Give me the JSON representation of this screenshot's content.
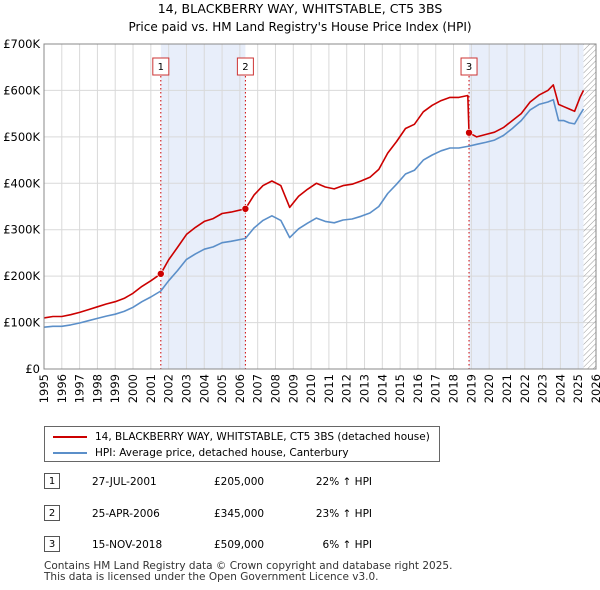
{
  "chart_data": {
    "type": "line",
    "title": "14, BLACKBERRY WAY, WHITSTABLE, CT5 3BS",
    "subtitle": "Price paid vs. HM Land Registry's House Price Index (HPI)",
    "xlabel": "",
    "ylabel": "",
    "xlim": [
      1995,
      2026
    ],
    "ylim": [
      0,
      700000
    ],
    "x_ticks": [
      "1995",
      "1996",
      "1997",
      "1998",
      "1999",
      "2000",
      "2001",
      "2002",
      "2003",
      "2004",
      "2005",
      "2006",
      "2007",
      "2008",
      "2009",
      "2010",
      "2011",
      "2012",
      "2013",
      "2014",
      "2015",
      "2016",
      "2017",
      "2018",
      "2019",
      "2020",
      "2021",
      "2022",
      "2023",
      "2024",
      "2025",
      "2026"
    ],
    "y_ticks": [
      {
        "value": 0,
        "label": "£0"
      },
      {
        "value": 100000,
        "label": "£100K"
      },
      {
        "value": 200000,
        "label": "£200K"
      },
      {
        "value": 300000,
        "label": "£300K"
      },
      {
        "value": 400000,
        "label": "£400K"
      },
      {
        "value": 500000,
        "label": "£500K"
      },
      {
        "value": 600000,
        "label": "£600K"
      },
      {
        "value": 700000,
        "label": "£700K"
      }
    ],
    "grid": true,
    "shaded_periods": [
      [
        2001.56,
        2006.31
      ],
      [
        2018.87,
        2025.3
      ]
    ],
    "future_hatch_from": 2025.3,
    "series": [
      {
        "name": "14, BLACKBERRY WAY, WHITSTABLE, CT5 3BS (detached house)",
        "color": "#cc0000",
        "x": [
          1995.0,
          1995.5,
          1996.0,
          1996.5,
          1997.0,
          1997.5,
          1998.0,
          1998.5,
          1999.0,
          1999.5,
          2000.0,
          2000.5,
          2001.0,
          2001.56,
          2002.0,
          2002.5,
          2003.0,
          2003.5,
          2004.0,
          2004.5,
          2005.0,
          2005.5,
          2006.31,
          2006.8,
          2007.3,
          2007.8,
          2008.3,
          2008.8,
          2009.3,
          2009.8,
          2010.3,
          2010.8,
          2011.3,
          2011.8,
          2012.3,
          2012.8,
          2013.3,
          2013.8,
          2014.3,
          2014.8,
          2015.3,
          2015.8,
          2016.3,
          2016.8,
          2017.3,
          2017.8,
          2018.3,
          2018.8,
          2018.87,
          2019.3,
          2019.8,
          2020.3,
          2020.8,
          2021.3,
          2021.8,
          2022.3,
          2022.8,
          2023.3,
          2023.6,
          2023.9,
          2024.2,
          2024.5,
          2024.8,
          2025.1,
          2025.3
        ],
        "y": [
          110000,
          113000,
          113000,
          117000,
          122000,
          128000,
          134000,
          140000,
          145000,
          152000,
          163000,
          178000,
          190000,
          205000,
          235000,
          262000,
          290000,
          305000,
          318000,
          324000,
          335000,
          338000,
          345000,
          375000,
          395000,
          405000,
          395000,
          348000,
          372000,
          387000,
          400000,
          392000,
          388000,
          395000,
          398000,
          405000,
          413000,
          430000,
          465000,
          490000,
          518000,
          527000,
          554000,
          568000,
          578000,
          585000,
          585000,
          589000,
          509000,
          500000,
          505000,
          510000,
          520000,
          535000,
          550000,
          575000,
          590000,
          600000,
          612000,
          570000,
          565000,
          560000,
          555000,
          585000,
          600000
        ]
      },
      {
        "name": "HPI: Average price, detached house, Canterbury",
        "color": "#5b8fc9",
        "x": [
          1995.0,
          1995.5,
          1996.0,
          1996.5,
          1997.0,
          1997.5,
          1998.0,
          1998.5,
          1999.0,
          1999.5,
          2000.0,
          2000.5,
          2001.0,
          2001.56,
          2002.0,
          2002.5,
          2003.0,
          2003.5,
          2004.0,
          2004.5,
          2005.0,
          2005.5,
          2006.31,
          2006.8,
          2007.3,
          2007.8,
          2008.3,
          2008.8,
          2009.3,
          2009.8,
          2010.3,
          2010.8,
          2011.3,
          2011.8,
          2012.3,
          2012.8,
          2013.3,
          2013.8,
          2014.3,
          2014.8,
          2015.3,
          2015.8,
          2016.3,
          2016.8,
          2017.3,
          2017.8,
          2018.3,
          2018.87,
          2019.3,
          2019.8,
          2020.3,
          2020.8,
          2021.3,
          2021.8,
          2022.3,
          2022.8,
          2023.3,
          2023.6,
          2023.9,
          2024.2,
          2024.5,
          2024.8,
          2025.1,
          2025.3
        ],
        "y": [
          90000,
          92000,
          92000,
          95000,
          99000,
          104000,
          109000,
          114000,
          118000,
          124000,
          133000,
          145000,
          155000,
          168000,
          190000,
          212000,
          236000,
          248000,
          258000,
          263000,
          272000,
          275000,
          281000,
          304000,
          320000,
          330000,
          320000,
          283000,
          302000,
          314000,
          325000,
          318000,
          315000,
          321000,
          323000,
          329000,
          336000,
          350000,
          378000,
          398000,
          420000,
          428000,
          450000,
          461000,
          470000,
          476000,
          476000,
          480000,
          484000,
          488000,
          493000,
          503000,
          518000,
          535000,
          558000,
          570000,
          575000,
          580000,
          535000,
          535000,
          530000,
          528000,
          548000,
          560000
        ]
      }
    ],
    "transactions": [
      {
        "num": "1",
        "x": 2001.56,
        "value": 205000,
        "date": "27-JUL-2001",
        "price": "£205,000",
        "hpi": "22% ↑ HPI"
      },
      {
        "num": "2",
        "x": 2006.31,
        "value": 345000,
        "date": "25-APR-2006",
        "price": "£345,000",
        "hpi": "23% ↑ HPI"
      },
      {
        "num": "3",
        "x": 2018.87,
        "value": 509000,
        "date": "15-NOV-2018",
        "price": "£509,000",
        "hpi": "6% ↑ HPI"
      }
    ]
  },
  "legend": {
    "property_label": "14, BLACKBERRY WAY, WHITSTABLE, CT5 3BS (detached house)",
    "hpi_label": "HPI: Average price, detached house, Canterbury"
  },
  "footer": {
    "line1": "Contains HM Land Registry data © Crown copyright and database right 2025.",
    "line2": "This data is licensed under the Open Government Licence v3.0."
  },
  "colors": {
    "property": "#cc0000",
    "hpi": "#5b8fc9",
    "shade": "#e8eefa",
    "grid": "#d9d9d9"
  }
}
